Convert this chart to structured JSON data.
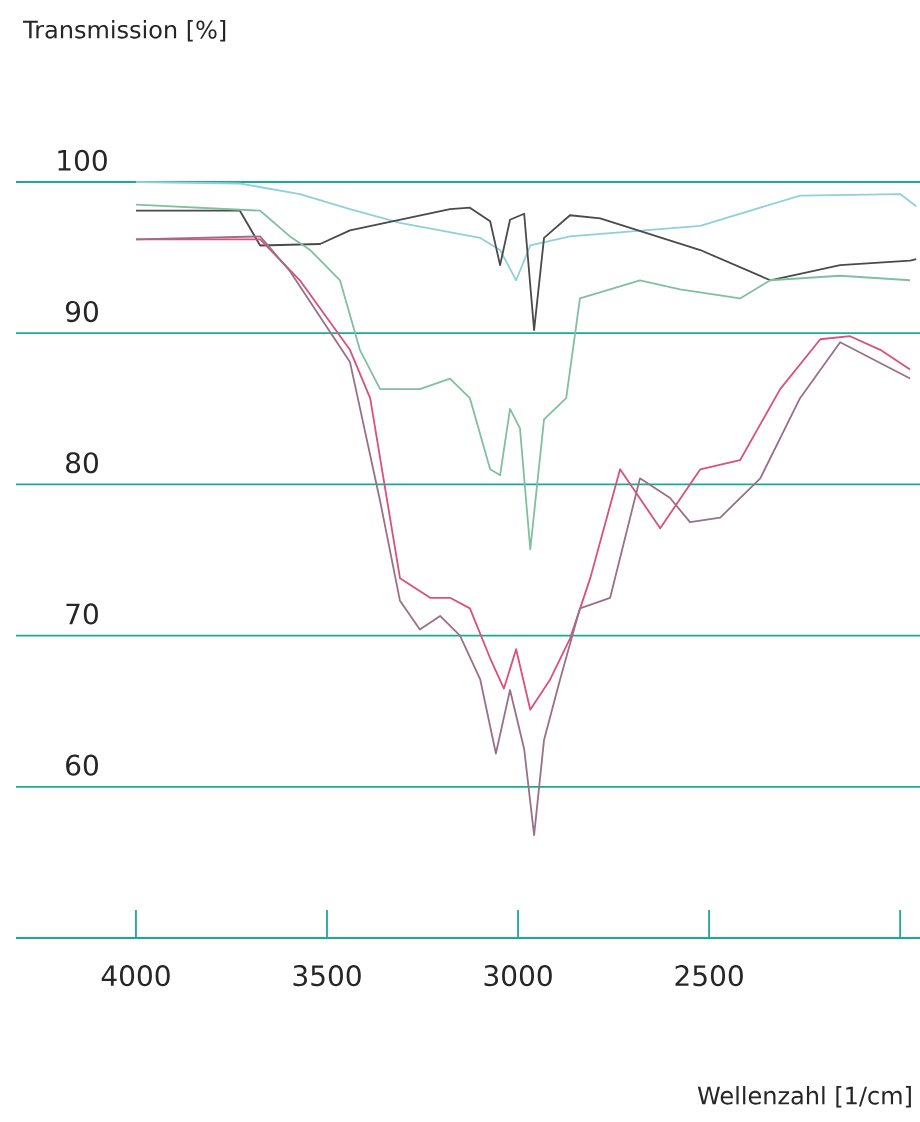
{
  "chart_data": {
    "type": "line",
    "xlabel": "Wellenzahl [1/cm]",
    "ylabel": "Transmission [%]",
    "xlim": [
      4314,
      1948
    ],
    "ylim": [
      50,
      100
    ],
    "xticks": [
      4000,
      3500,
      3000,
      2500,
      {
        "value": 2000,
        "label": null
      }
    ],
    "yticks": [
      60,
      70,
      80,
      90,
      100
    ],
    "grid": "y",
    "series": [
      {
        "color": "#8fd0dc",
        "x": [
          4000,
          3728,
          3571,
          3440,
          3309,
          3099,
          3047,
          3005,
          2968,
          2864,
          2523,
          2262,
          2000,
          1958
        ],
        "values": [
          100.0,
          99.9,
          99.2,
          98.2,
          97.3,
          96.3,
          95.5,
          93.5,
          95.8,
          96.4,
          97.1,
          99.1,
          99.2,
          98.4
        ]
      },
      {
        "color": "#4a4a4a",
        "x": [
          4000,
          3728,
          3675,
          3518,
          3440,
          3178,
          3126,
          3073,
          3047,
          3021,
          2984,
          2958,
          2932,
          2864,
          2785,
          2523,
          2340,
          2157,
          1974,
          1958
        ],
        "values": [
          98.1,
          98.1,
          95.8,
          95.9,
          96.8,
          98.2,
          98.3,
          97.4,
          94.5,
          97.5,
          97.9,
          90.2,
          96.3,
          97.8,
          97.6,
          95.5,
          93.5,
          94.5,
          94.8,
          94.9
        ]
      },
      {
        "color": "#80c0a0",
        "x": [
          4000,
          3675,
          3597,
          3544,
          3466,
          3414,
          3361,
          3257,
          3178,
          3126,
          3073,
          3047,
          3021,
          2995,
          2968,
          2932,
          2874,
          2838,
          2681,
          2576,
          2419,
          2340,
          2157,
          1974
        ],
        "values": [
          98.5,
          98.1,
          96.4,
          95.5,
          93.5,
          88.9,
          86.3,
          86.3,
          87.0,
          85.7,
          81.0,
          80.6,
          85.0,
          83.7,
          75.7,
          84.3,
          85.7,
          92.3,
          93.5,
          92.9,
          92.3,
          93.5,
          93.8,
          93.5
        ]
      },
      {
        "color": "#d9507f",
        "x": [
          4000,
          3675,
          3571,
          3440,
          3387,
          3309,
          3230,
          3178,
          3126,
          3073,
          3037,
          3005,
          2968,
          2916,
          2864,
          2811,
          2733,
          2628,
          2523,
          2419,
          2314,
          2209,
          2131,
          2052,
          1974
        ],
        "values": [
          96.2,
          96.2,
          93.5,
          88.9,
          85.7,
          73.8,
          72.5,
          72.5,
          71.8,
          68.5,
          66.5,
          69.1,
          65.1,
          67.1,
          69.8,
          73.8,
          81.0,
          77.1,
          81.0,
          81.6,
          86.3,
          89.6,
          89.8,
          88.9,
          87.6
        ]
      },
      {
        "color": "#9a7088",
        "x": [
          4000,
          3675,
          3597,
          3440,
          3361,
          3309,
          3257,
          3204,
          3152,
          3099,
          3058,
          3021,
          2984,
          2958,
          2932,
          2890,
          2838,
          2759,
          2681,
          2602,
          2550,
          2471,
          2366,
          2262,
          2157,
          1974
        ],
        "values": [
          96.2,
          96.4,
          94.1,
          88.1,
          78.9,
          72.3,
          70.4,
          71.3,
          70.0,
          67.1,
          62.2,
          66.4,
          62.5,
          56.8,
          63.1,
          67.1,
          71.8,
          72.5,
          80.4,
          79.1,
          77.5,
          77.8,
          80.4,
          85.7,
          89.4,
          87.0
        ]
      }
    ]
  }
}
